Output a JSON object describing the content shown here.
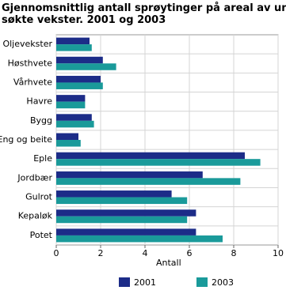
{
  "chart_data": {
    "type": "hbar",
    "title": [
      "Gjennomsnittlig antall sprøytinger på areal av under-",
      "søkte vekster. 2001 og 2003"
    ],
    "categories": [
      "Oljevekster",
      "Høsthvete",
      "Vårhvete",
      "Havre",
      "Bygg",
      "Eng og beite",
      "Eple",
      "Jordbær",
      "Gulrot",
      "Kepaløk",
      "Potet"
    ],
    "series": [
      {
        "name": "2001",
        "color": "#1c2c88",
        "values": [
          1.5,
          2.1,
          2.0,
          1.3,
          1.6,
          1.0,
          8.5,
          6.6,
          5.2,
          6.3,
          6.3
        ]
      },
      {
        "name": "2003",
        "color": "#1a9a9a",
        "values": [
          1.6,
          2.7,
          2.1,
          1.3,
          1.7,
          1.1,
          9.2,
          8.3,
          5.9,
          5.9,
          7.5
        ]
      }
    ],
    "xlabel": "Antall",
    "xlim": [
      0,
      10
    ],
    "xticks": [
      0,
      2,
      4,
      6,
      8,
      10
    ],
    "grid": true,
    "legend": "bottom"
  }
}
